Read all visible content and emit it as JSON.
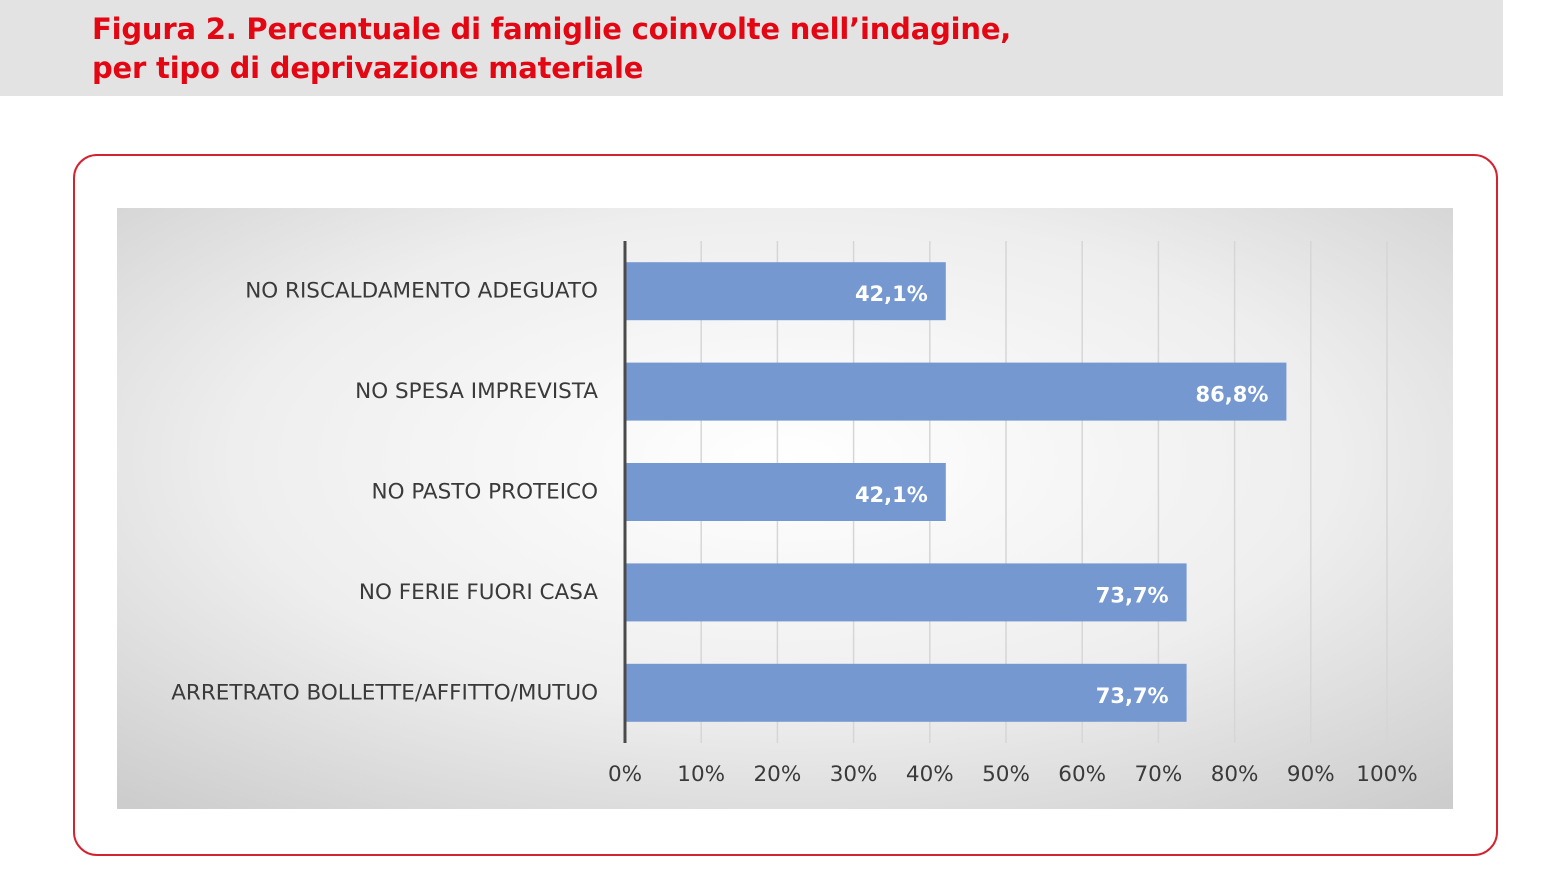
{
  "figure": {
    "title_line1": "Figura 2. Percentuale di famiglie coinvolte nell’indagine,",
    "title_line2": "per tipo di deprivazione materiale"
  },
  "colors": {
    "title": "#e30613",
    "frame": "#d42330",
    "bar": "#7698d1",
    "header_band": "#e3e3e3"
  },
  "chart_data": {
    "type": "bar",
    "orientation": "horizontal",
    "categories": [
      "NO RISCALDAMENTO ADEGUATO",
      "NO SPESA IMPREVISTA",
      "NO PASTO PROTEICO",
      "NO FERIE FUORI CASA",
      "ARRETRATO BOLLETTE/AFFITTO/MUTUO"
    ],
    "values": [
      42.1,
      86.8,
      42.1,
      73.7,
      73.7
    ],
    "data_labels": [
      "42,1%",
      "86,8%",
      "42,1%",
      "73,7%",
      "73,7%"
    ],
    "xlim": [
      0,
      100
    ],
    "x_ticks": [
      "0%",
      "10%",
      "20%",
      "30%",
      "40%",
      "50%",
      "60%",
      "70%",
      "80%",
      "90%",
      "100%"
    ],
    "grid": "vertical",
    "legend": "none"
  }
}
